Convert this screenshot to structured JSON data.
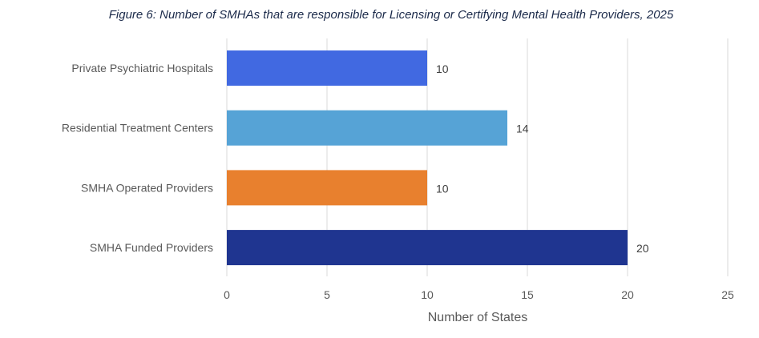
{
  "chart_data": {
    "type": "bar",
    "orientation": "horizontal",
    "title": "Figure 6: Number of SMHAs that are responsible for Licensing or Certifying Mental Health Providers, 2025",
    "xlabel": "Number of States",
    "ylabel": "",
    "categories": [
      "Private Psychiatric Hospitals",
      "Residential Treatment Centers",
      "SMHA Operated Providers",
      "SMHA Funded Providers"
    ],
    "values": [
      10,
      14,
      10,
      20
    ],
    "colors": [
      "#4169e1",
      "#56a3d6",
      "#e8802e",
      "#1f3590"
    ],
    "xlim": [
      0,
      25
    ],
    "xticks": [
      "0",
      "5",
      "10",
      "15",
      "20",
      "25"
    ],
    "grid": true,
    "legend": "none"
  }
}
